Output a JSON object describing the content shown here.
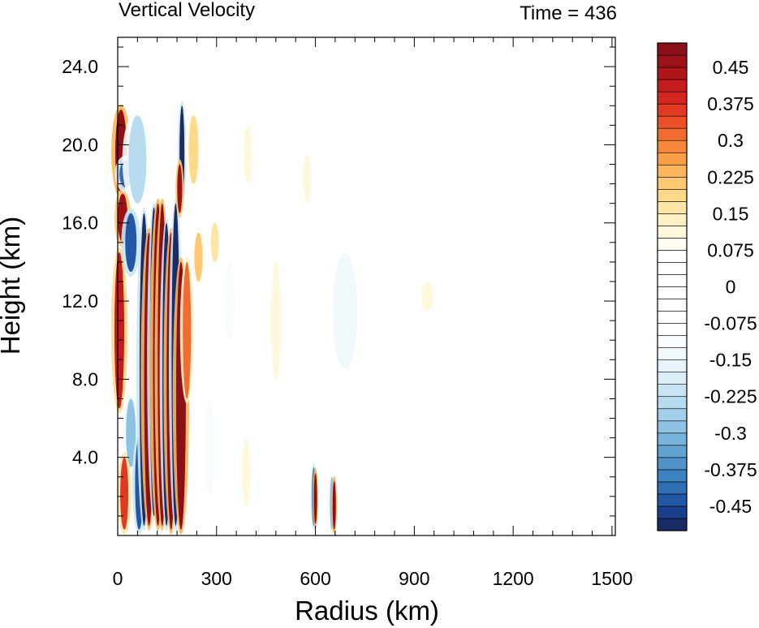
{
  "chart_data": {
    "type": "heatmap",
    "title": "Vertical Velocity",
    "subtitle": "Time = 436",
    "xlabel": "Radius (km)",
    "ylabel": "Height (km)",
    "xlim": [
      0,
      1510
    ],
    "ylim": [
      0,
      25.5
    ],
    "x_ticks": [
      0,
      300,
      600,
      900,
      1200,
      1500
    ],
    "x_tick_labels": [
      "0",
      "300",
      "600",
      "900",
      "1200",
      "1500"
    ],
    "y_ticks": [
      4,
      8,
      12,
      16,
      20,
      24
    ],
    "y_tick_labels": [
      "4.0",
      "8.0",
      "12.0",
      "16.0",
      "20.0",
      "24.0"
    ],
    "colorbar": {
      "levels": [
        -0.5,
        -0.475,
        -0.45,
        -0.425,
        -0.4,
        -0.375,
        -0.35,
        -0.325,
        -0.3,
        -0.275,
        -0.25,
        -0.225,
        -0.2,
        -0.175,
        -0.15,
        -0.125,
        -0.1,
        -0.075,
        -0.05,
        -0.025,
        0,
        0.025,
        0.05,
        0.075,
        0.1,
        0.125,
        0.15,
        0.175,
        0.2,
        0.225,
        0.25,
        0.275,
        0.3,
        0.325,
        0.35,
        0.375,
        0.4,
        0.425,
        0.45,
        0.475,
        0.5
      ],
      "tick_values": [
        0.45,
        0.375,
        0.3,
        0.225,
        0.15,
        0.075,
        0,
        -0.075,
        -0.15,
        -0.225,
        -0.3,
        -0.375,
        -0.45
      ],
      "tick_labels": [
        "0.45",
        "0.375",
        "0.3",
        "0.225",
        "0.15",
        "0.075",
        "0",
        "-0.075",
        "-0.15",
        "-0.225",
        "-0.3",
        "-0.375",
        "-0.45"
      ],
      "colors_low_to_high": [
        "#1a2c66",
        "#1c3f8c",
        "#2258a6",
        "#2f6fb3",
        "#3d83bf",
        "#4f93c8",
        "#62a3d2",
        "#78b3db",
        "#8ec2e3",
        "#a3cfea",
        "#b7dbef",
        "#c9e5f4",
        "#daeef8",
        "#e8f4fb",
        "#f2f9fd",
        "#f9fcfe",
        "#ffffff",
        "#ffffff",
        "#ffffff",
        "#ffffff",
        "#ffffff",
        "#ffffff",
        "#ffffff",
        "#fffdf2",
        "#fff8dd",
        "#fff1c4",
        "#ffe6a6",
        "#ffd98a",
        "#fdc872",
        "#fcb55c",
        "#fa9f48",
        "#f6873a",
        "#f16c30",
        "#ea5128",
        "#e03a23",
        "#d4261f",
        "#c41b1d",
        "#b0151b",
        "#9d1218",
        "#8b1017"
      ]
    },
    "features": [
      {
        "r": 10,
        "z0": 17.5,
        "z1": 21.8,
        "v": 0.5,
        "w": 14
      },
      {
        "r": 15,
        "z0": 15.0,
        "z1": 17.5,
        "v": 0.45,
        "w": 12
      },
      {
        "r": 5,
        "z0": 6.5,
        "z1": 14.5,
        "v": 0.42,
        "w": 12
      },
      {
        "r": 25,
        "z0": 17.8,
        "z1": 19.2,
        "v": -0.42,
        "w": 16
      },
      {
        "r": 60,
        "z0": 17.0,
        "z1": 21.5,
        "v": -0.25,
        "w": 22
      },
      {
        "r": 40,
        "z0": 13.5,
        "z1": 16.5,
        "v": -0.45,
        "w": 14
      },
      {
        "r": 40,
        "z0": 3.5,
        "z1": 7.0,
        "v": -0.3,
        "w": 12
      },
      {
        "r": 20,
        "z0": 0.3,
        "z1": 4.0,
        "v": 0.35,
        "w": 10
      },
      {
        "r": 65,
        "z0": 0.3,
        "z1": 5.0,
        "v": -0.45,
        "w": 10
      },
      {
        "r": 80,
        "z0": 0.5,
        "z1": 16.5,
        "v": -0.5,
        "w": 11
      },
      {
        "r": 95,
        "z0": 0.5,
        "z1": 15.5,
        "v": 0.5,
        "w": 12
      },
      {
        "r": 110,
        "z0": 1.0,
        "z1": 16.8,
        "v": -0.5,
        "w": 10
      },
      {
        "r": 122,
        "z0": 0.5,
        "z1": 17.0,
        "v": 0.5,
        "w": 12
      },
      {
        "r": 135,
        "z0": 0.5,
        "z1": 17.0,
        "v": 0.5,
        "w": 11
      },
      {
        "r": 148,
        "z0": 0.5,
        "z1": 16.0,
        "v": -0.5,
        "w": 10
      },
      {
        "r": 162,
        "z0": 0.3,
        "z1": 15.5,
        "v": 0.5,
        "w": 11
      },
      {
        "r": 176,
        "z0": 0.5,
        "z1": 17.0,
        "v": -0.5,
        "w": 10
      },
      {
        "r": 192,
        "z0": 0.3,
        "z1": 14.0,
        "v": 0.5,
        "w": 12
      },
      {
        "r": 195,
        "z0": 17.0,
        "z1": 22.0,
        "v": -0.5,
        "w": 6
      },
      {
        "r": 188,
        "z0": 16.5,
        "z1": 19.0,
        "v": 0.45,
        "w": 6
      },
      {
        "r": 210,
        "z0": 7.0,
        "z1": 14.0,
        "v": 0.3,
        "w": 10
      },
      {
        "r": 230,
        "z0": 18.0,
        "z1": 21.5,
        "v": 0.18,
        "w": 12
      },
      {
        "r": 245,
        "z0": 13.0,
        "z1": 15.5,
        "v": 0.22,
        "w": 10
      },
      {
        "r": 280,
        "z0": 2.0,
        "z1": 7.0,
        "v": -0.12,
        "w": 12
      },
      {
        "r": 295,
        "z0": 14.0,
        "z1": 16.0,
        "v": 0.15,
        "w": 10
      },
      {
        "r": 340,
        "z0": 10.0,
        "z1": 14.0,
        "v": -0.12,
        "w": 12
      },
      {
        "r": 390,
        "z0": 1.5,
        "z1": 5.0,
        "v": 0.1,
        "w": 10
      },
      {
        "r": 395,
        "z0": 18.0,
        "z1": 21.0,
        "v": 0.1,
        "w": 10
      },
      {
        "r": 480,
        "z0": 8.0,
        "z1": 14.0,
        "v": 0.1,
        "w": 12
      },
      {
        "r": 575,
        "z0": 17.0,
        "z1": 19.5,
        "v": 0.12,
        "w": 10
      },
      {
        "r": 595,
        "z0": 0.5,
        "z1": 3.5,
        "v": -0.4,
        "w": 5
      },
      {
        "r": 600,
        "z0": 0.6,
        "z1": 3.2,
        "v": 0.5,
        "w": 4
      },
      {
        "r": 650,
        "z0": 0.3,
        "z1": 3.0,
        "v": -0.3,
        "w": 5
      },
      {
        "r": 657,
        "z0": 0.3,
        "z1": 2.8,
        "v": 0.5,
        "w": 4
      },
      {
        "r": 690,
        "z0": 8.5,
        "z1": 14.5,
        "v": -0.15,
        "w": 30
      },
      {
        "r": 700,
        "z0": 17.0,
        "z1": 20.0,
        "v": -0.08,
        "w": 25
      },
      {
        "r": 940,
        "z0": 11.5,
        "z1": 13.0,
        "v": 0.1,
        "w": 14
      }
    ]
  }
}
